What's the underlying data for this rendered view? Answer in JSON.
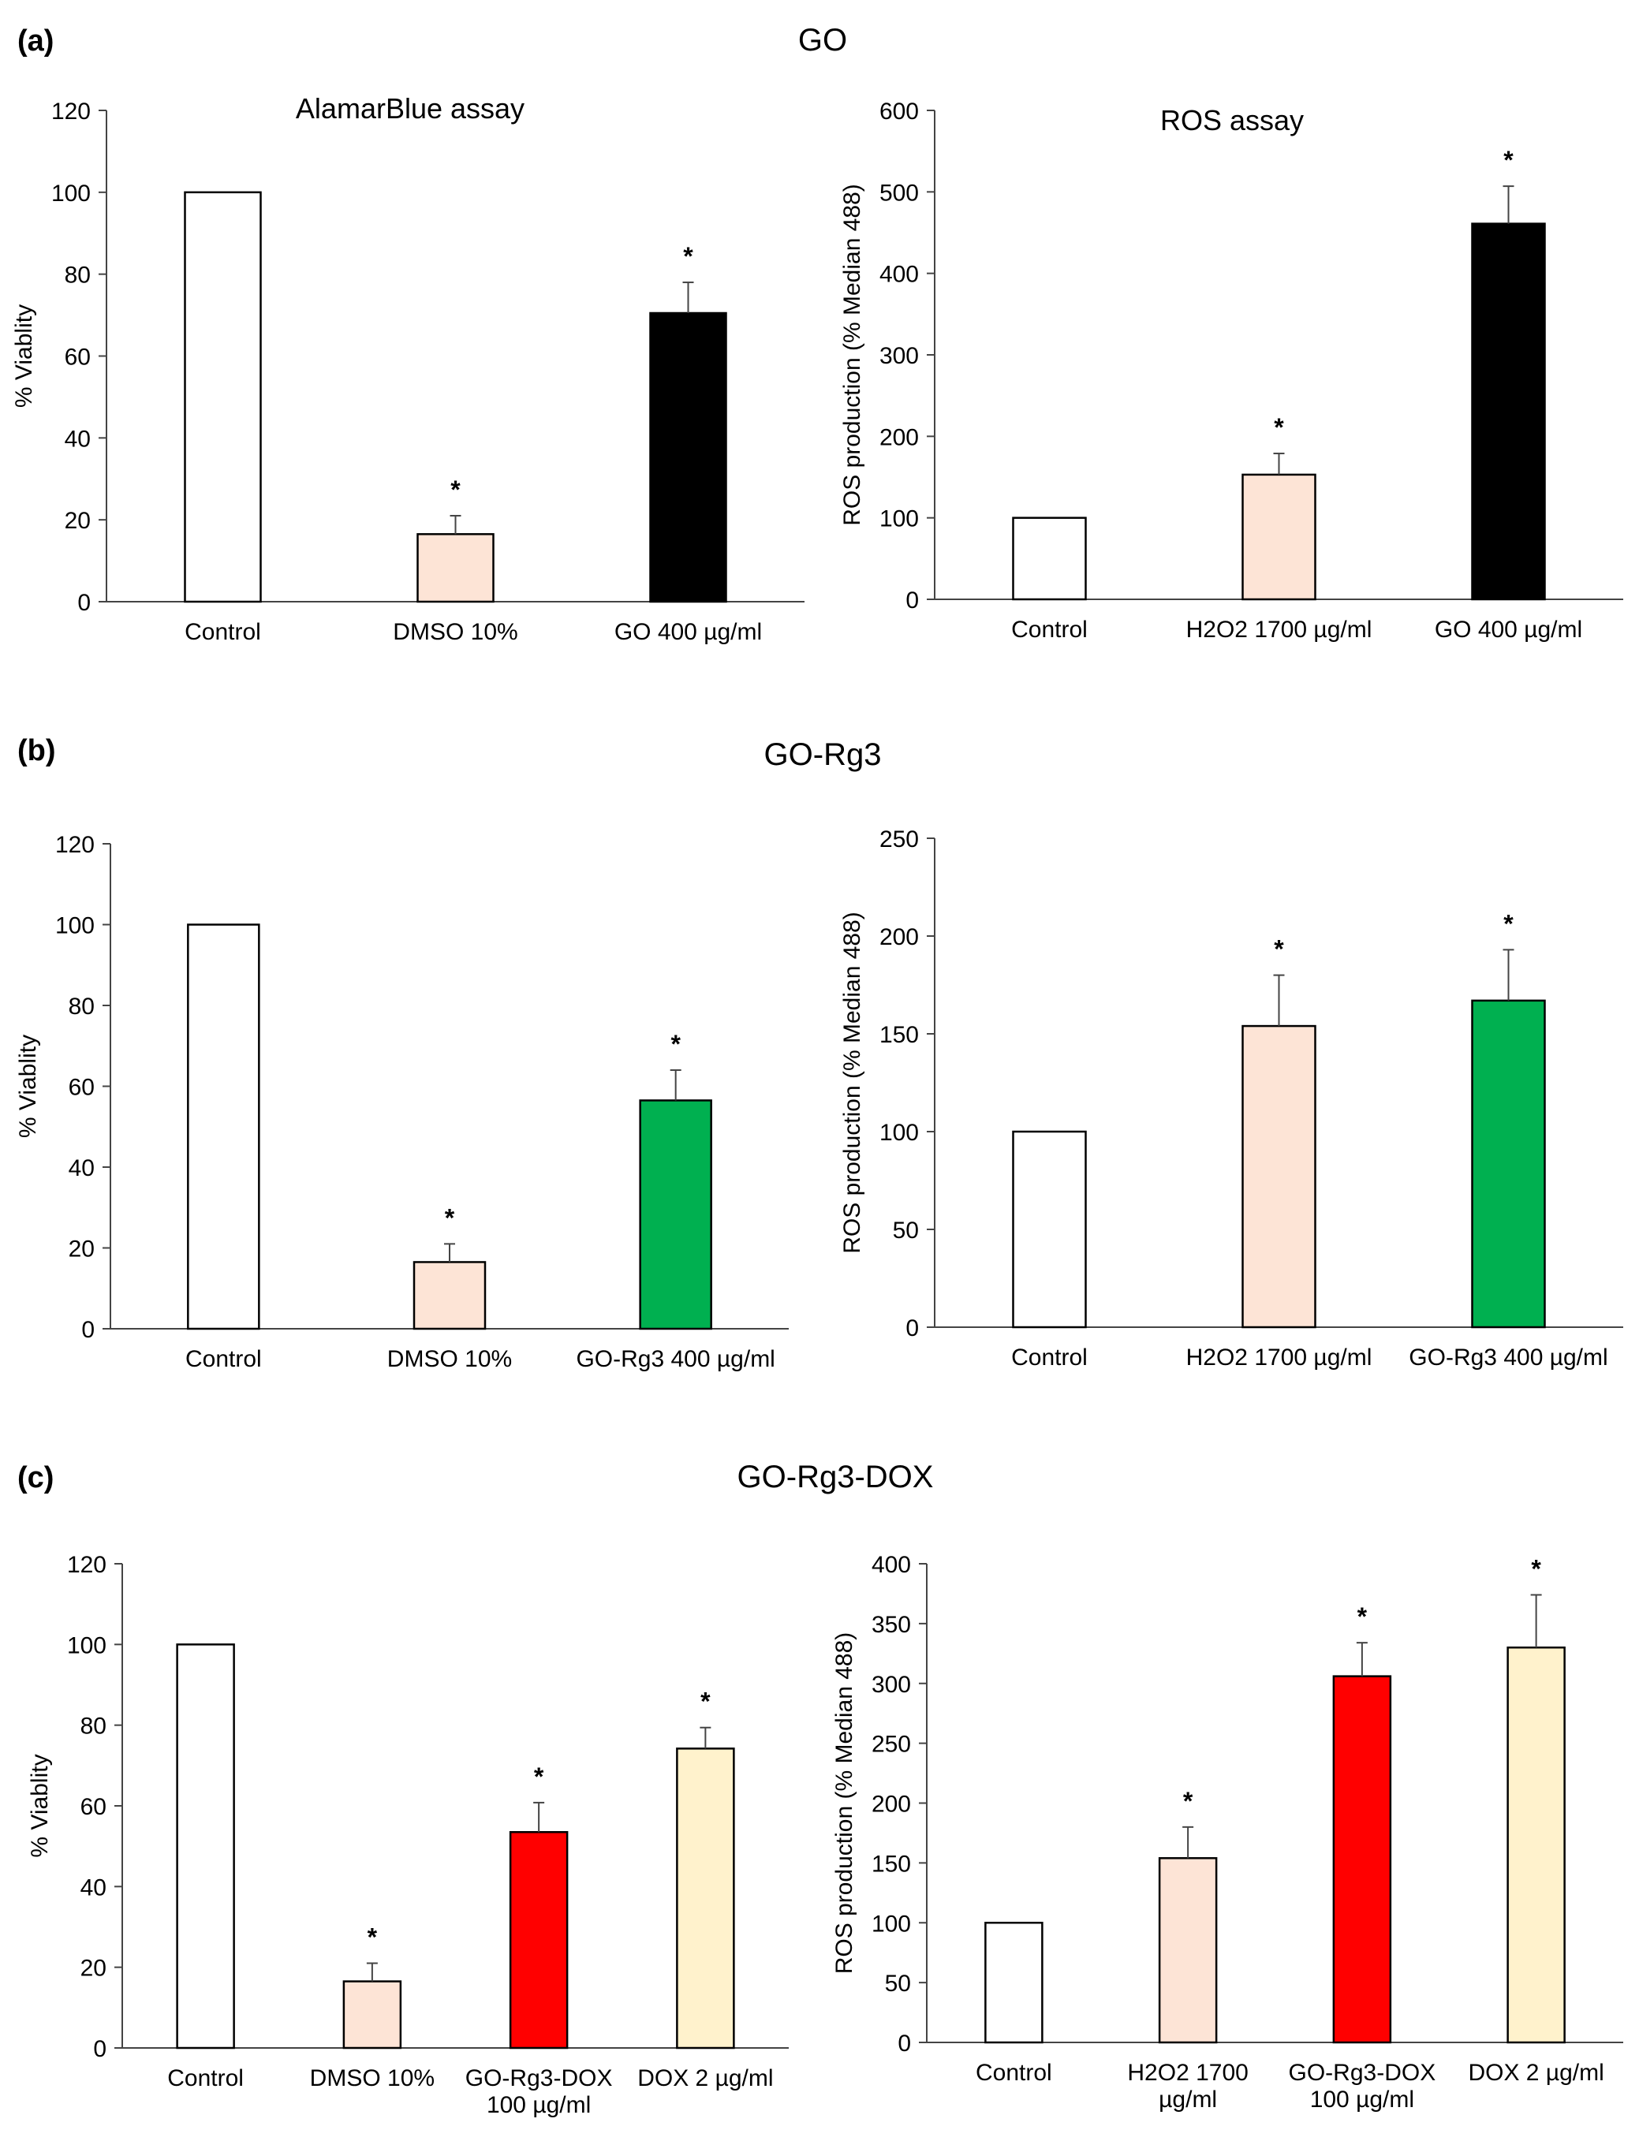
{
  "panels": [
    {
      "id": "a",
      "label": "(a)",
      "title": "GO"
    },
    {
      "id": "b",
      "label": "(b)",
      "title": "GO-Rg3"
    },
    {
      "id": "c",
      "label": "(c)",
      "title": "GO-Rg3-DOX"
    }
  ],
  "significance_marker": "*",
  "chart_data": [
    {
      "panel": "a",
      "type": "bar",
      "title": "AlamarBlue assay",
      "ylabel": "% Viablity",
      "xlabel": "",
      "ylim": [
        0,
        120
      ],
      "yticks": [
        0,
        20,
        40,
        60,
        80,
        100,
        120
      ],
      "categories": [
        [
          "Control"
        ],
        [
          "DMSO 10%"
        ],
        [
          "GO 400 µg/ml"
        ]
      ],
      "values": [
        100,
        16.5,
        70.5
      ],
      "errors": [
        0,
        4.5,
        7.5
      ],
      "significant": [
        false,
        true,
        true
      ],
      "colors": [
        "#ffffff",
        "#fde4d6",
        "#000000"
      ]
    },
    {
      "panel": "a",
      "type": "bar",
      "title": "ROS assay",
      "ylabel": "ROS production (% Median 488)",
      "xlabel": "",
      "ylim": [
        0,
        600
      ],
      "yticks": [
        0,
        100,
        200,
        300,
        400,
        500,
        600
      ],
      "categories": [
        [
          "Control"
        ],
        [
          "H2O2 1700 µg/ml"
        ],
        [
          "GO 400 µg/ml"
        ]
      ],
      "values": [
        100,
        153,
        461
      ],
      "errors": [
        0,
        26,
        46
      ],
      "significant": [
        false,
        true,
        true
      ],
      "colors": [
        "#ffffff",
        "#fde4d6",
        "#000000"
      ]
    },
    {
      "panel": "b",
      "type": "bar",
      "title": "",
      "ylabel": "% Viablity",
      "xlabel": "",
      "ylim": [
        0,
        120
      ],
      "yticks": [
        0,
        20,
        40,
        60,
        80,
        100,
        120
      ],
      "categories": [
        [
          "Control"
        ],
        [
          "DMSO 10%"
        ],
        [
          "GO-Rg3 400 µg/ml"
        ]
      ],
      "values": [
        100,
        16.5,
        56.5
      ],
      "errors": [
        0,
        4.5,
        7.5
      ],
      "significant": [
        false,
        true,
        true
      ],
      "colors": [
        "#ffffff",
        "#fde4d6",
        "#00b050"
      ]
    },
    {
      "panel": "b",
      "type": "bar",
      "title": "",
      "ylabel": "ROS production (% Median 488)",
      "xlabel": "",
      "ylim": [
        0,
        250
      ],
      "yticks": [
        0,
        50,
        100,
        150,
        200,
        250
      ],
      "categories": [
        [
          "Control"
        ],
        [
          "H2O2 1700 µg/ml"
        ],
        [
          "GO-Rg3 400 µg/ml"
        ]
      ],
      "values": [
        100,
        154,
        167
      ],
      "errors": [
        0,
        26,
        26
      ],
      "significant": [
        false,
        true,
        true
      ],
      "colors": [
        "#ffffff",
        "#fde4d6",
        "#00b050"
      ]
    },
    {
      "panel": "c",
      "type": "bar",
      "title": "",
      "ylabel": "% Viablity",
      "xlabel": "",
      "ylim": [
        0,
        120
      ],
      "yticks": [
        0,
        20,
        40,
        60,
        80,
        100,
        120
      ],
      "categories": [
        [
          "Control"
        ],
        [
          "DMSO 10%"
        ],
        [
          "GO-Rg3-DOX",
          "100 µg/ml"
        ],
        [
          "DOX 2 µg/ml"
        ]
      ],
      "values": [
        100,
        16.5,
        53.5,
        74.2
      ],
      "errors": [
        0,
        4.5,
        7.3,
        5.2
      ],
      "significant": [
        false,
        true,
        true,
        true
      ],
      "colors": [
        "#ffffff",
        "#fde4d6",
        "#ff0000",
        "#fff2cc"
      ]
    },
    {
      "panel": "c",
      "type": "bar",
      "title": "",
      "ylabel": "ROS production (% Median 488)",
      "xlabel": "",
      "ylim": [
        0,
        400
      ],
      "yticks": [
        0,
        50,
        100,
        150,
        200,
        250,
        300,
        350,
        400
      ],
      "categories": [
        [
          "Control"
        ],
        [
          "H2O2 1700",
          "µg/ml"
        ],
        [
          "GO-Rg3-DOX",
          "100 µg/ml"
        ],
        [
          "DOX 2 µg/ml"
        ]
      ],
      "values": [
        100,
        154,
        306,
        330
      ],
      "errors": [
        0,
        26,
        28,
        44
      ],
      "significant": [
        false,
        true,
        true,
        true
      ],
      "colors": [
        "#ffffff",
        "#fde4d6",
        "#ff0000",
        "#fff2cc"
      ]
    }
  ]
}
